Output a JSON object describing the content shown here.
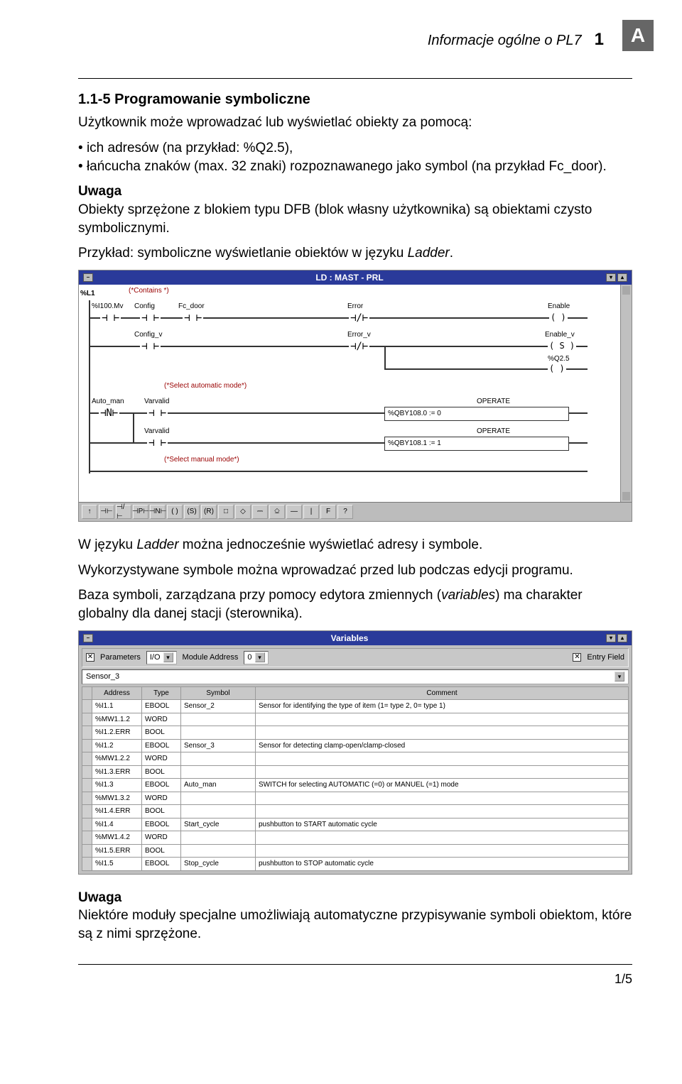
{
  "corner_letter": "A",
  "header": {
    "title": "Informacje ogólne o PL7",
    "chapter": "1"
  },
  "section": {
    "num_title": "1.1-5  Programowanie symboliczne",
    "intro": "Użytkownik może wprowadzać lub wyświetlać obiekty za pomocą:",
    "bullets": [
      "ich adresów (na przykład: %Q2.5),",
      "łańcucha znaków (max. 32 znaki) rozpoznawanego jako symbol (na przykład Fc_door)."
    ],
    "uwaga1_label": "Uwaga",
    "uwaga1_text": "Obiekty sprzężone z blokiem typu DFB (blok własny użytkownika) są obiektami czysto symbolicznymi.",
    "example_line_a": "Przykład: symboliczne wyświetlanie obiektów w języku ",
    "example_line_b": "Ladder",
    "example_line_c": ".",
    "para2a": "W języku ",
    "para2b": "Ladder",
    "para2c": " można jednocześnie wyświetlać adresy i symbole.",
    "para3": "Wykorzystywane symbole można wprowadzać przed lub podczas edycji programu.",
    "para4a": "Baza symboli, zarządzana przy pomocy edytora zmiennych (",
    "para4b": "variables",
    "para4c": ") ma charakter globalny dla danej stacji (sterownika).",
    "uwaga2_label": "Uwaga",
    "uwaga2_text": "Niektóre moduły specjalne umożliwiają automatyczne przypisywanie symboli obiektom, które są z nimi sprzężone."
  },
  "ladder": {
    "title": "LD : MAST - PRL",
    "rung_label": "%L1",
    "comment1": "(*Contains *)",
    "row1": {
      "c1_top": "%I100.Mv",
      "c1": "Config",
      "c2_top": "Fc_door",
      "err_top": "Error",
      "out_top": "Enable"
    },
    "row2": {
      "c1": "Config_v",
      "err": "Error_v",
      "out": "Enable_v",
      "out2_lbl": "%Q2.5"
    },
    "comment2": "(*Select automatic mode*)",
    "row3": {
      "c1_top": "Auto_man",
      "c2_top": "Varvalid",
      "op1_lbl": "OPERATE",
      "op1": "%QBY108.0 := 0"
    },
    "row4": {
      "c2_top": "Varvalid",
      "op2_lbl": "OPERATE",
      "op2": "%QBY108.1 := 1"
    },
    "comment3": "(*Select manual mode*)",
    "toolbar_icons": [
      "↑",
      "⊣⊢",
      "⊣/⊢",
      "⊣P⊢",
      "⊣N⊢",
      "( )",
      "(S)",
      "(R)",
      "□",
      "◇",
      "⎓",
      "⎐",
      "—",
      "|",
      "F",
      "?"
    ]
  },
  "vars": {
    "title": "Variables",
    "top": {
      "params_label": "Parameters",
      "io_label": "I/O",
      "modaddr_label": "Module Address",
      "modaddr_val": "0",
      "entry_label": "Entry Field"
    },
    "selected": "Sensor_3",
    "columns": [
      "",
      "Address",
      "Type",
      "Symbol",
      "Comment"
    ],
    "rows": [
      [
        "",
        "%I1.1",
        "EBOOL",
        "Sensor_2",
        "Sensor for identifying the type of item (1= type 2, 0= type 1)"
      ],
      [
        "",
        "%MW1.1.2",
        "WORD",
        "",
        ""
      ],
      [
        "",
        "%I1.2.ERR",
        "BOOL",
        "",
        ""
      ],
      [
        "",
        "%I1.2",
        "EBOOL",
        "Sensor_3",
        "Sensor for detecting clamp-open/clamp-closed"
      ],
      [
        "",
        "%MW1.2.2",
        "WORD",
        "",
        ""
      ],
      [
        "",
        "%I1.3.ERR",
        "BOOL",
        "",
        ""
      ],
      [
        "",
        "%I1.3",
        "EBOOL",
        "Auto_man",
        "SWITCH for selecting AUTOMATIC (=0) or MANUEL (=1) mode"
      ],
      [
        "",
        "%MW1.3.2",
        "WORD",
        "",
        ""
      ],
      [
        "",
        "%I1.4.ERR",
        "BOOL",
        "",
        ""
      ],
      [
        "",
        "%I1.4",
        "EBOOL",
        "Start_cycle",
        "pushbutton to START automatic cycle"
      ],
      [
        "",
        "%MW1.4.2",
        "WORD",
        "",
        ""
      ],
      [
        "",
        "%I1.5.ERR",
        "BOOL",
        "",
        ""
      ],
      [
        "",
        "%I1.5",
        "EBOOL",
        "Stop_cycle",
        "pushbutton to STOP automatic cycle"
      ]
    ]
  },
  "footer": "1/5"
}
